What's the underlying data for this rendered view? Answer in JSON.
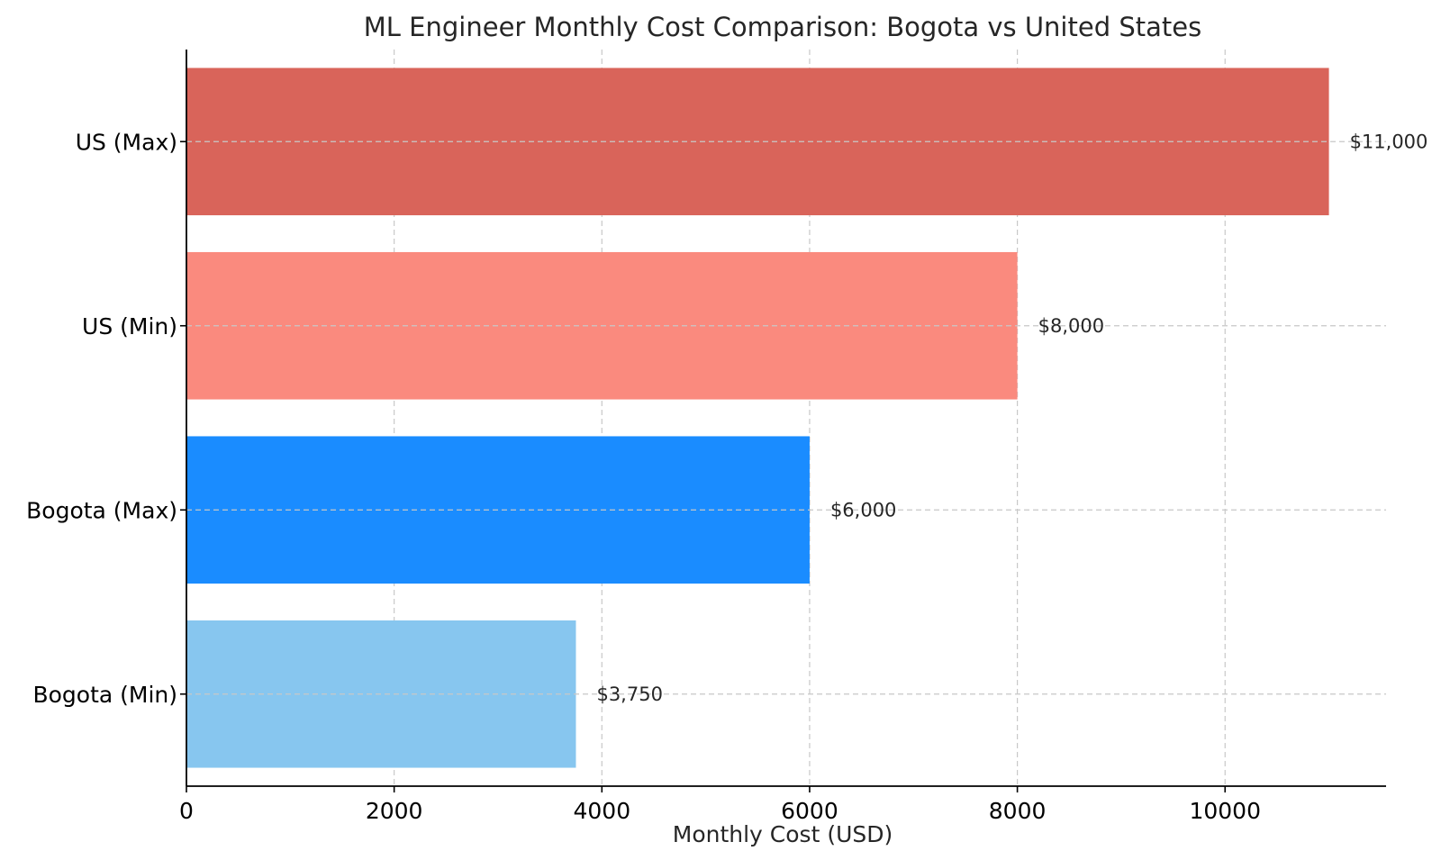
{
  "chart_data": {
    "type": "bar",
    "orientation": "horizontal",
    "title": "ML Engineer Monthly Cost Comparison: Bogota vs United States",
    "xlabel": "Monthly Cost (USD)",
    "ylabel": "",
    "xlim": [
      0,
      11550
    ],
    "xticks": [
      0,
      2000,
      4000,
      6000,
      8000,
      10000
    ],
    "xtick_labels": [
      "0",
      "2000",
      "4000",
      "6000",
      "8000",
      "10000"
    ],
    "grid": true,
    "categories": [
      "US (Max)",
      "US (Min)",
      "Bogota (Max)",
      "Bogota (Min)"
    ],
    "values": [
      11000,
      8000,
      6000,
      3750
    ],
    "data_labels": [
      "$11,000",
      "$8,000",
      "$6,000",
      "$3,750"
    ],
    "colors": [
      "#d9645a",
      "#fa8a7e",
      "#1a8cff",
      "#87c6ef"
    ]
  }
}
